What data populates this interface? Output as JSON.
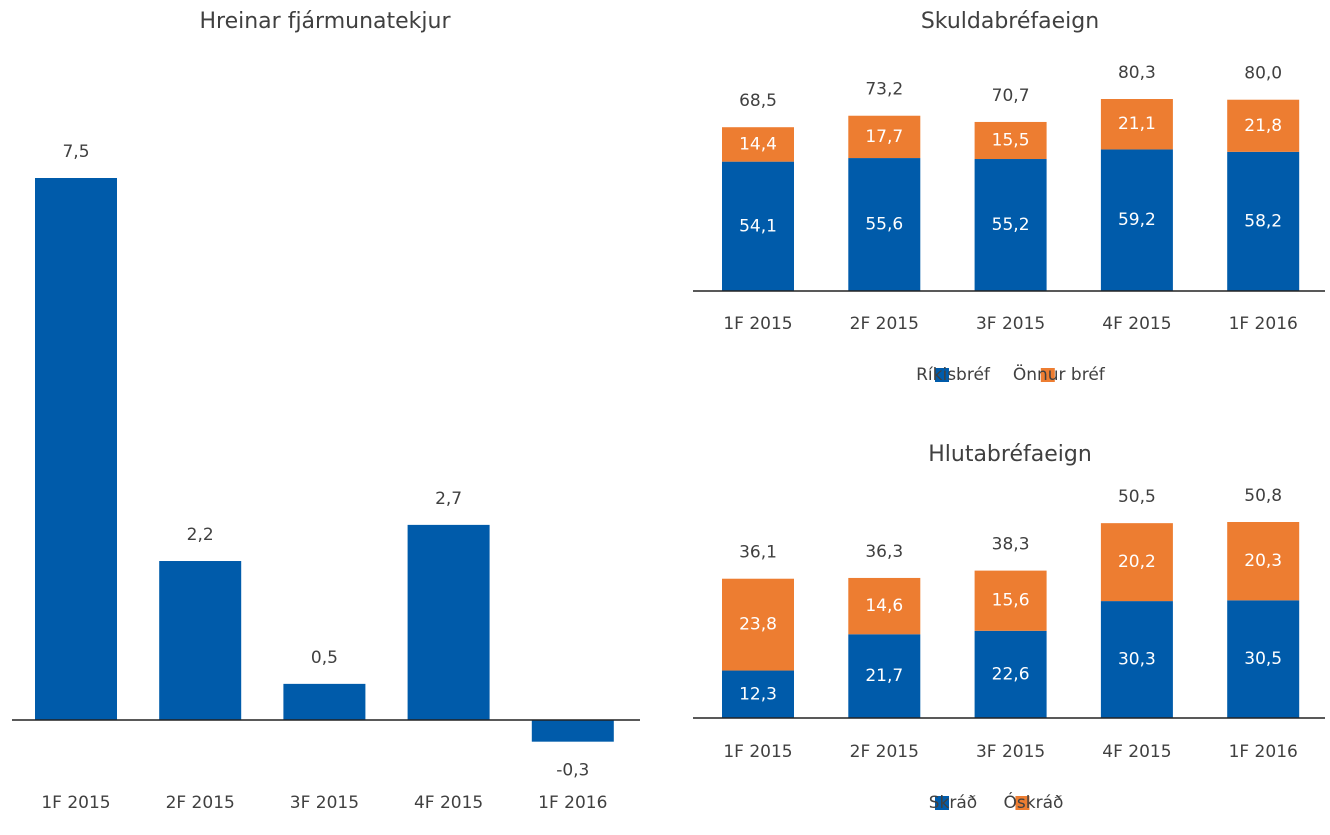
{
  "chart_data": [
    {
      "type": "bar",
      "title": "Hreinar fjármunatekjur",
      "categories": [
        "1F 2015",
        "2F 2015",
        "3F 2015",
        "4F 2015",
        "1F 2016"
      ],
      "values": [
        7.5,
        2.2,
        0.5,
        2.7,
        -0.3
      ],
      "value_labels": [
        "7,5",
        "2,2",
        "0,5",
        "2,7",
        "-0,3"
      ],
      "color": "#005BAA"
    },
    {
      "type": "stacked_bar",
      "title": "Skuldabréfaeign",
      "categories": [
        "1F 2015",
        "2F 2015",
        "3F 2015",
        "4F 2015",
        "1F 2016"
      ],
      "series": [
        {
          "name": "Ríkisbréf",
          "color": "#005BAA",
          "values": [
            54.1,
            55.6,
            55.2,
            59.2,
            58.2
          ],
          "value_labels": [
            "54,1",
            "55,6",
            "55,2",
            "59,2",
            "58,2"
          ]
        },
        {
          "name": "Önnur bréf",
          "color": "#ED7D31",
          "values": [
            14.4,
            17.7,
            15.5,
            21.1,
            21.8
          ],
          "value_labels": [
            "14,4",
            "17,7",
            "15,5",
            "21,1",
            "21,8"
          ]
        }
      ],
      "total_labels": [
        "68,5",
        "73,2",
        "70,7",
        "80,3",
        "80,0"
      ],
      "legend": "bottom"
    },
    {
      "type": "stacked_bar",
      "title": "Hlutabréfaeign",
      "categories": [
        "1F 2015",
        "2F 2015",
        "3F 2015",
        "4F 2015",
        "1F 2016"
      ],
      "series": [
        {
          "name": "Skráð",
          "color": "#005BAA",
          "values": [
            12.3,
            21.7,
            22.6,
            30.3,
            30.5
          ],
          "value_labels": [
            "12,3",
            "21,7",
            "22,6",
            "30,3",
            "30,5"
          ]
        },
        {
          "name": "Óskráð",
          "color": "#ED7D31",
          "values": [
            23.8,
            14.6,
            15.6,
            20.2,
            20.3
          ],
          "value_labels": [
            "23,8",
            "14,6",
            "15,6",
            "20,2",
            "20,3"
          ]
        }
      ],
      "total_labels": [
        "36,1",
        "36,3",
        "38,3",
        "50,5",
        "50,8"
      ],
      "legend": "bottom"
    }
  ]
}
